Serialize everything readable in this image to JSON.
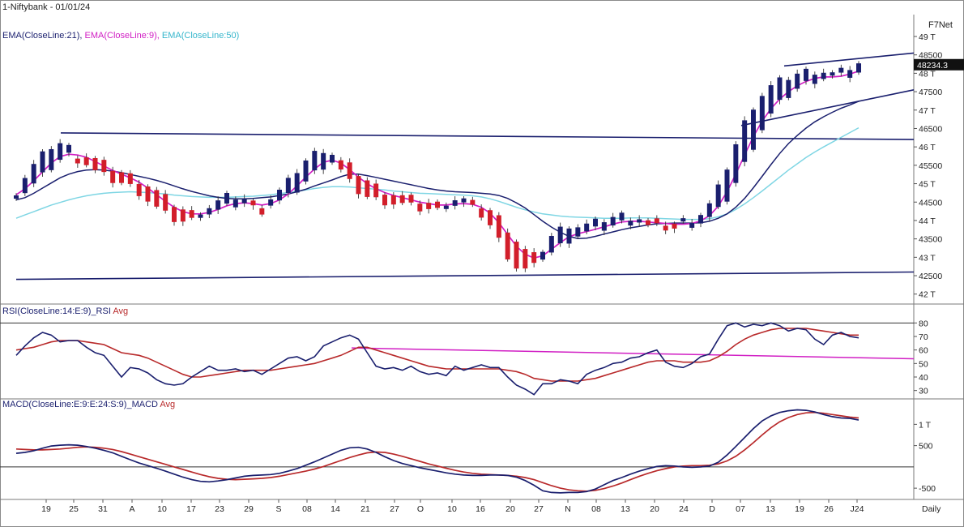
{
  "header": {
    "symbol": "1-Niftybank - 01/01/24",
    "brand": "F7Net",
    "ema21": "EMA(CloseLine:21),",
    "ema9": "EMA(CloseLine:9),",
    "ema50": "EMA(CloseLine:50)",
    "last_price": "48234.3"
  },
  "colors": {
    "up": "#1a1f6e",
    "down": "#d21e2a",
    "ema9": "#d11fc4",
    "ema21": "#1a1f6e",
    "ema50": "#7fd6e4",
    "rsi": "#1a1f6e",
    "rsi_avg": "#b8292a",
    "macd": "#1a1f6e",
    "macd_avg": "#b8292a",
    "trendline_pink": "#d11fc4"
  },
  "chart_data": [
    {
      "type": "candlestick",
      "title": "1-Niftybank - 01/01/24",
      "y_ticks": [
        "49 T",
        "48500",
        "48 T",
        "47500",
        "47 T",
        "46500",
        "46 T",
        "45500",
        "45 T",
        "44500",
        "44 T",
        "43500",
        "43 T",
        "42500",
        "42 T"
      ],
      "ylim": [
        41950,
        49000
      ],
      "x_tick_labels": [
        "19",
        "25",
        "31",
        "A",
        "10",
        "17",
        "23",
        "29",
        "S",
        "08",
        "14",
        "21",
        "27",
        "O",
        "10",
        "16",
        "20",
        "27",
        "N",
        "08",
        "13",
        "20",
        "24",
        "D",
        "07",
        "13",
        "19",
        "26",
        "J24"
      ],
      "x_axis_label": "Daily",
      "series": [
        {
          "name": "EMA(CloseLine:21)",
          "values": [
            44560,
            44620,
            44740,
            44880,
            45020,
            45160,
            45260,
            45330,
            45370,
            45380,
            45370,
            45340,
            45300,
            45250,
            45200,
            45150,
            45090,
            45020,
            44940,
            44860,
            44790,
            44730,
            44670,
            44630,
            44600,
            44590,
            44590,
            44600,
            44620,
            44640,
            44680,
            44720,
            44780,
            44850,
            44940,
            45020,
            45100,
            45190,
            45260,
            45260,
            45220,
            45170,
            45120,
            45070,
            45020,
            44970,
            44920,
            44870,
            44830,
            44800,
            44780,
            44770,
            44760,
            44740,
            44720,
            44680,
            44600,
            44480,
            44340,
            44160,
            43980,
            43820,
            43680,
            43570,
            43510,
            43520,
            43570,
            43630,
            43690,
            43750,
            43800,
            43840,
            43880,
            43910,
            43920,
            43930,
            43930,
            43930,
            43940,
            43980,
            44060,
            44180,
            44360,
            44600,
            44890,
            45200,
            45520,
            45820,
            46090,
            46310,
            46510,
            46680,
            46820,
            46940,
            47050,
            47140,
            47240
          ]
        },
        {
          "name": "EMA(CloseLine:9)",
          "values": [
            44700,
            44860,
            45080,
            45320,
            45560,
            45740,
            45800,
            45780,
            45720,
            45600,
            45480,
            45360,
            45260,
            45160,
            45040,
            44880,
            44700,
            44520,
            44360,
            44240,
            44180,
            44180,
            44220,
            44300,
            44400,
            44460,
            44480,
            44460,
            44420,
            44460,
            44560,
            44720,
            44940,
            45180,
            45400,
            45580,
            45640,
            45560,
            45380,
            45180,
            45000,
            44860,
            44760,
            44680,
            44620,
            44560,
            44500,
            44460,
            44420,
            44420,
            44450,
            44460,
            44440,
            44360,
            44200,
            43940,
            43620,
            43300,
            43080,
            42980,
            43040,
            43220,
            43400,
            43560,
            43640,
            43700,
            43760,
            43830,
            43900,
            43960,
            43980,
            43980,
            43960,
            43940,
            43920,
            43900,
            43900,
            43920,
            43990,
            44130,
            44390,
            44780,
            45260,
            45780,
            46280,
            46700,
            47040,
            47300,
            47500,
            47660,
            47780,
            47860,
            47900,
            47900,
            47920,
            47980,
            48060
          ]
        },
        {
          "name": "EMA(CloseLine:50)",
          "values": [
            44060,
            44150,
            44240,
            44330,
            44420,
            44490,
            44560,
            44620,
            44670,
            44710,
            44740,
            44760,
            44770,
            44780,
            44770,
            44760,
            44740,
            44720,
            44690,
            44670,
            44650,
            44640,
            44630,
            44630,
            44630,
            44640,
            44650,
            44660,
            44680,
            44700,
            44730,
            44760,
            44790,
            44830,
            44870,
            44900,
            44920,
            44920,
            44910,
            44890,
            44870,
            44850,
            44830,
            44800,
            44780,
            44760,
            44740,
            44730,
            44720,
            44710,
            44700,
            44690,
            44670,
            44640,
            44590,
            44520,
            44440,
            44360,
            44290,
            44230,
            44180,
            44150,
            44120,
            44100,
            44090,
            44080,
            44070,
            44060,
            44060,
            44060,
            44070,
            44070,
            44070,
            44060,
            44050,
            44040,
            44030,
            44030,
            44030,
            44050,
            44100,
            44180,
            44300,
            44450,
            44620,
            44800,
            44990,
            45180,
            45370,
            45540,
            45710,
            45860,
            46000,
            46130,
            46260,
            46390,
            46520
          ]
        }
      ]
    },
    {
      "type": "line",
      "title": "RSI(CloseLine:14:E:9)_RSI",
      "legend": [
        "RSI(CloseLine:14:E:9)_RSI",
        "Avg"
      ],
      "y_ticks": [
        "80",
        "70",
        "60",
        "50",
        "40",
        "30"
      ],
      "ylim": [
        25,
        85
      ],
      "series": [
        {
          "name": "RSI",
          "values": [
            56,
            63,
            69,
            73,
            71,
            66,
            67,
            67,
            62,
            58,
            56,
            48,
            40,
            47,
            46,
            43,
            38,
            35,
            34,
            35,
            40,
            44,
            48,
            45,
            45,
            46,
            44,
            45,
            42,
            46,
            50,
            54,
            55,
            52,
            55,
            63,
            66,
            69,
            71,
            68,
            58,
            48,
            46,
            47,
            45,
            48,
            44,
            42,
            43,
            41,
            48,
            45,
            47,
            49,
            47,
            47,
            40,
            34,
            31,
            27,
            35,
            35,
            38,
            37,
            35,
            42,
            45,
            47,
            50,
            51,
            54,
            55,
            58,
            60,
            51,
            48,
            47,
            50,
            55,
            57,
            68,
            78,
            80,
            77,
            79,
            78,
            80,
            78,
            74,
            76,
            75,
            68,
            64,
            71,
            73,
            70,
            69
          ]
        },
        {
          "name": "Avg",
          "values": [
            60,
            61,
            62,
            64,
            66,
            67,
            67,
            67,
            66,
            65,
            64,
            61,
            58,
            57,
            56,
            54,
            51,
            48,
            45,
            42,
            40,
            40,
            41,
            42,
            43,
            44,
            45,
            45,
            45,
            45,
            46,
            47,
            48,
            49,
            50,
            52,
            54,
            56,
            59,
            62,
            62,
            60,
            58,
            56,
            54,
            52,
            50,
            48,
            47,
            46,
            46,
            46,
            46,
            46,
            46,
            46,
            45,
            44,
            42,
            39,
            38,
            37,
            37,
            37,
            37,
            38,
            39,
            41,
            43,
            45,
            47,
            49,
            51,
            52,
            52,
            52,
            51,
            51,
            51,
            52,
            55,
            59,
            64,
            68,
            71,
            73,
            75,
            76,
            76,
            76,
            76,
            75,
            74,
            73,
            72,
            71,
            71
          ]
        }
      ]
    },
    {
      "type": "line",
      "title": "MACD(CloseLine:E:9:E:24:S:9)_MACD",
      "legend": [
        "MACD(CloseLine:E:9:E:24:S:9)_MACD",
        "Avg"
      ],
      "y_ticks": [
        "1 T",
        "500",
        "-500"
      ],
      "ylim": [
        -650,
        1350
      ],
      "series": [
        {
          "name": "MACD",
          "values": [
            320,
            340,
            380,
            440,
            490,
            510,
            520,
            510,
            480,
            440,
            390,
            330,
            250,
            170,
            90,
            30,
            -30,
            -100,
            -170,
            -240,
            -300,
            -340,
            -350,
            -330,
            -300,
            -260,
            -220,
            -200,
            -190,
            -180,
            -150,
            -100,
            -40,
            40,
            120,
            210,
            300,
            390,
            450,
            460,
            420,
            340,
            240,
            150,
            80,
            30,
            -20,
            -60,
            -100,
            -140,
            -170,
            -190,
            -200,
            -200,
            -190,
            -190,
            -200,
            -240,
            -320,
            -430,
            -560,
            -600,
            -610,
            -600,
            -600,
            -580,
            -520,
            -420,
            -320,
            -250,
            -170,
            -100,
            -40,
            10,
            30,
            20,
            0,
            -10,
            0,
            20,
            110,
            280,
            480,
            690,
            900,
            1080,
            1200,
            1280,
            1320,
            1340,
            1330,
            1290,
            1230,
            1180,
            1150,
            1140,
            1100
          ]
        },
        {
          "name": "Avg",
          "values": [
            420,
            410,
            400,
            400,
            410,
            420,
            440,
            460,
            470,
            460,
            440,
            410,
            360,
            300,
            240,
            180,
            120,
            60,
            0,
            -60,
            -120,
            -180,
            -230,
            -270,
            -290,
            -300,
            -290,
            -280,
            -270,
            -250,
            -220,
            -180,
            -140,
            -100,
            -50,
            10,
            80,
            150,
            220,
            280,
            330,
            350,
            340,
            300,
            250,
            190,
            130,
            70,
            20,
            -30,
            -80,
            -120,
            -150,
            -170,
            -180,
            -190,
            -200,
            -220,
            -250,
            -300,
            -370,
            -440,
            -500,
            -540,
            -560,
            -570,
            -550,
            -510,
            -450,
            -380,
            -300,
            -220,
            -150,
            -90,
            -40,
            0,
            20,
            30,
            30,
            40,
            70,
            140,
            250,
            400,
            570,
            750,
            920,
            1060,
            1160,
            1230,
            1270,
            1280,
            1260,
            1230,
            1200,
            1170,
            1150
          ]
        }
      ]
    }
  ]
}
